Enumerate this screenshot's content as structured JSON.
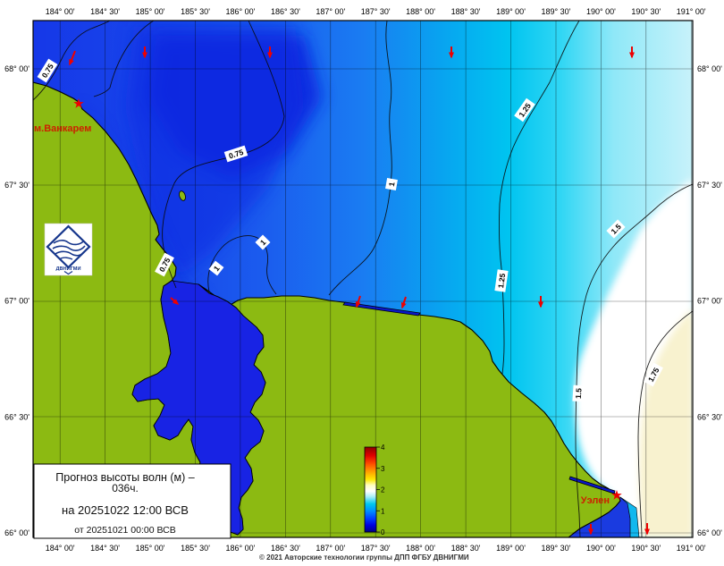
{
  "legend": {
    "line1": "Прогноз высоты волн (м) –",
    "line2": "036ч.",
    "line3": "на 20251022 12:00 ВСВ",
    "line4": "от 20251021 00:00 ВСВ"
  },
  "copyright": "© 2021 Авторские технологии группы ДПП ФГБУ ДВНИГМИ",
  "logo": {
    "text": "ДВНИГМИ"
  },
  "places": {
    "vankarem": "м.Ванкарем",
    "uelen": "Уэлен"
  },
  "axis": {
    "top": [
      "184° 00'",
      "184° 30'",
      "185° 00'",
      "185° 30'",
      "186° 00'",
      "186° 30'",
      "187° 00'",
      "187° 30'",
      "188° 00'",
      "188° 30'",
      "189° 00'",
      "189° 30'",
      "190° 00'",
      "190° 30'",
      "191° 00'"
    ],
    "bottom": [
      "184° 00'",
      "184° 30'",
      "185° 00'",
      "185° 30'",
      "186° 00'",
      "186° 30'",
      "187° 00'",
      "187° 30'",
      "188° 00'",
      "188° 30'",
      "189° 00'",
      "189° 30'",
      "190° 00'",
      "190° 30'",
      "191° 00'"
    ],
    "left": [
      "68° 00'",
      "67° 30'",
      "67° 00'",
      "66° 30'",
      "66° 00'"
    ],
    "right": [
      "68° 00'",
      "67° 30'",
      "67° 00'",
      "66° 30'",
      "66° 00'"
    ]
  },
  "colorbar": {
    "ticks": [
      "0",
      "1",
      "2",
      "3",
      "4"
    ],
    "min": 0,
    "max": 4,
    "units": "м"
  },
  "contours": [
    {
      "label": "0.75"
    },
    {
      "label": "0.75"
    },
    {
      "label": "0.75"
    },
    {
      "label": "1"
    },
    {
      "label": "1"
    },
    {
      "label": "1"
    },
    {
      "label": "1.25"
    },
    {
      "label": "1.25"
    },
    {
      "label": "1.5"
    },
    {
      "label": "1.5"
    },
    {
      "label": "1.75"
    }
  ],
  "colors": {
    "land": "#8cba12",
    "bay_water": "#1823e4",
    "deep_blue": "#0a22de",
    "mid_blue": "#1a7cf2",
    "cyan": "#00c4f0",
    "white_zone": "#ffffff",
    "cream_zone": "#f8f2cf",
    "arrow_red": "#ee0000",
    "label_red": "#cc2200",
    "logo_blue": "#16368c"
  }
}
